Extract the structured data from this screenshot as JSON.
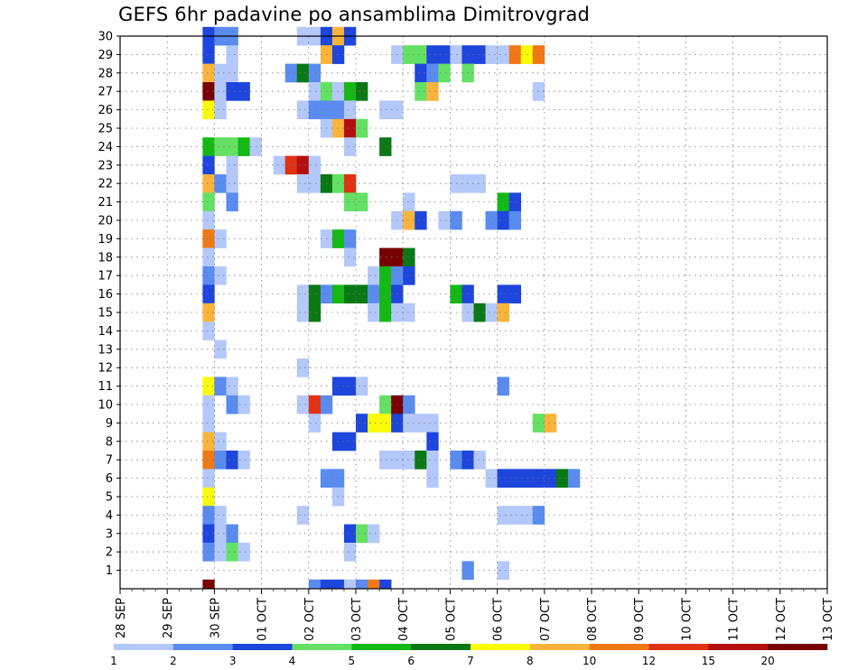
{
  "chart_data": {
    "type": "heatmap",
    "title": "GEFS 6hr padavine po ansamblima Dimitrovgrad",
    "xlabel": "",
    "ylabel": "",
    "x_tick_labels": [
      "28 SEP",
      "29 SEP",
      "30 SEP",
      "01 OCT",
      "02 OCT",
      "03 OCT",
      "04 OCT",
      "05 OCT",
      "06 OCT",
      "07 OCT",
      "08 OCT",
      "09 OCT",
      "10 OCT",
      "11 OCT",
      "12 OCT",
      "13 OCT"
    ],
    "y_tick_labels": [
      "1",
      "2",
      "3",
      "4",
      "5",
      "6",
      "7",
      "8",
      "9",
      "10",
      "11",
      "12",
      "13",
      "14",
      "15",
      "16",
      "17",
      "18",
      "19",
      "20",
      "21",
      "22",
      "23",
      "24",
      "25",
      "26",
      "27",
      "28",
      "29",
      "30"
    ],
    "x_unit": "6-hour steps from 28 SEP 00z",
    "ylim": [
      0,
      30
    ],
    "grid": true,
    "colorbar": {
      "labels": [
        "1",
        "2",
        "3",
        "4",
        "5",
        "6",
        "7",
        "8",
        "10",
        "12",
        "15",
        "20"
      ],
      "colors": [
        "#b4c8fa",
        "#5a8cf0",
        "#1e46dc",
        "#64e164",
        "#14b914",
        "#0a7814",
        "#fafa0a",
        "#fab43c",
        "#f07814",
        "#e13214",
        "#b40f0f",
        "#780000"
      ]
    },
    "cells": [
      {
        "m": 30,
        "t": [
          [
            7,
            2
          ],
          [
            8,
            1
          ],
          [
            9,
            1
          ],
          [
            15,
            0
          ],
          [
            16,
            0
          ],
          [
            17,
            2
          ],
          [
            18,
            7
          ],
          [
            19,
            2
          ]
        ]
      },
      {
        "m": 29,
        "t": [
          [
            7,
            2
          ],
          [
            9,
            0
          ],
          [
            17,
            7
          ],
          [
            18,
            2
          ],
          [
            23,
            0
          ],
          [
            24,
            3
          ],
          [
            25,
            3
          ],
          [
            26,
            2
          ],
          [
            27,
            2
          ],
          [
            28,
            0
          ],
          [
            29,
            2
          ],
          [
            30,
            2
          ],
          [
            31,
            0
          ],
          [
            32,
            0
          ],
          [
            33,
            8
          ],
          [
            34,
            6
          ],
          [
            35,
            8
          ]
        ]
      },
      {
        "m": 28,
        "t": [
          [
            7,
            7
          ],
          [
            8,
            0
          ],
          [
            9,
            0
          ],
          [
            14,
            1
          ],
          [
            15,
            5
          ],
          [
            16,
            1
          ],
          [
            25,
            2
          ],
          [
            26,
            1
          ],
          [
            27,
            3
          ],
          [
            29,
            3
          ]
        ]
      },
      {
        "m": 27,
        "t": [
          [
            7,
            11
          ],
          [
            8,
            0
          ],
          [
            9,
            2
          ],
          [
            10,
            2
          ],
          [
            16,
            0
          ],
          [
            17,
            3
          ],
          [
            18,
            0
          ],
          [
            19,
            4
          ],
          [
            20,
            5
          ],
          [
            25,
            3
          ],
          [
            26,
            7
          ],
          [
            35,
            0
          ]
        ]
      },
      {
        "m": 26,
        "t": [
          [
            7,
            6
          ],
          [
            8,
            0
          ],
          [
            15,
            0
          ],
          [
            16,
            1
          ],
          [
            17,
            1
          ],
          [
            18,
            1
          ],
          [
            19,
            0
          ],
          [
            22,
            0
          ],
          [
            23,
            0
          ]
        ]
      },
      {
        "m": 25,
        "t": [
          [
            17,
            0
          ],
          [
            18,
            7
          ],
          [
            19,
            10
          ],
          [
            20,
            3
          ]
        ]
      },
      {
        "m": 24,
        "t": [
          [
            7,
            4
          ],
          [
            8,
            3
          ],
          [
            9,
            3
          ],
          [
            10,
            4
          ],
          [
            11,
            0
          ],
          [
            19,
            0
          ],
          [
            22,
            5
          ]
        ]
      },
      {
        "m": 23,
        "t": [
          [
            7,
            2
          ],
          [
            9,
            0
          ],
          [
            13,
            0
          ],
          [
            14,
            9
          ],
          [
            15,
            10
          ],
          [
            16,
            0
          ]
        ]
      },
      {
        "m": 22,
        "t": [
          [
            7,
            7
          ],
          [
            8,
            1
          ],
          [
            9,
            0
          ],
          [
            15,
            0
          ],
          [
            16,
            0
          ],
          [
            17,
            5
          ],
          [
            18,
            3
          ],
          [
            19,
            9
          ],
          [
            28,
            0
          ],
          [
            29,
            0
          ],
          [
            30,
            0
          ]
        ]
      },
      {
        "m": 21,
        "t": [
          [
            7,
            3
          ],
          [
            9,
            1
          ],
          [
            19,
            3
          ],
          [
            20,
            3
          ],
          [
            24,
            0
          ],
          [
            32,
            4
          ],
          [
            33,
            2
          ]
        ]
      },
      {
        "m": 20,
        "t": [
          [
            7,
            0
          ],
          [
            23,
            0
          ],
          [
            24,
            7
          ],
          [
            25,
            2
          ],
          [
            27,
            0
          ],
          [
            28,
            1
          ],
          [
            31,
            1
          ],
          [
            32,
            2
          ],
          [
            33,
            1
          ]
        ]
      },
      {
        "m": 19,
        "t": [
          [
            7,
            8
          ],
          [
            8,
            0
          ],
          [
            17,
            0
          ],
          [
            18,
            4
          ],
          [
            19,
            1
          ]
        ]
      },
      {
        "m": 18,
        "t": [
          [
            7,
            0
          ],
          [
            19,
            0
          ],
          [
            22,
            11
          ],
          [
            23,
            11
          ],
          [
            24,
            5
          ]
        ]
      },
      {
        "m": 17,
        "t": [
          [
            7,
            1
          ],
          [
            8,
            0
          ],
          [
            21,
            0
          ],
          [
            22,
            4
          ],
          [
            23,
            1
          ],
          [
            24,
            2
          ]
        ]
      },
      {
        "m": 16,
        "t": [
          [
            7,
            2
          ],
          [
            15,
            0
          ],
          [
            16,
            5
          ],
          [
            17,
            1
          ],
          [
            18,
            4
          ],
          [
            19,
            5
          ],
          [
            20,
            5
          ],
          [
            21,
            1
          ],
          [
            22,
            4
          ],
          [
            23,
            2
          ],
          [
            28,
            4
          ],
          [
            29,
            2
          ],
          [
            32,
            2
          ],
          [
            33,
            2
          ]
        ]
      },
      {
        "m": 15,
        "t": [
          [
            7,
            7
          ],
          [
            15,
            0
          ],
          [
            16,
            5
          ],
          [
            21,
            0
          ],
          [
            22,
            4
          ],
          [
            23,
            0
          ],
          [
            24,
            0
          ],
          [
            29,
            0
          ],
          [
            30,
            5
          ],
          [
            31,
            0
          ],
          [
            32,
            7
          ]
        ]
      },
      {
        "m": 14,
        "t": [
          [
            7,
            0
          ]
        ]
      },
      {
        "m": 13,
        "t": [
          [
            8,
            0
          ]
        ]
      },
      {
        "m": 12,
        "t": [
          [
            15,
            0
          ]
        ]
      },
      {
        "m": 11,
        "t": [
          [
            7,
            6
          ],
          [
            8,
            1
          ],
          [
            9,
            0
          ],
          [
            18,
            2
          ],
          [
            19,
            2
          ],
          [
            20,
            0
          ],
          [
            32,
            1
          ]
        ]
      },
      {
        "m": 10,
        "t": [
          [
            7,
            0
          ],
          [
            9,
            1
          ],
          [
            10,
            0
          ],
          [
            15,
            0
          ],
          [
            16,
            9
          ],
          [
            17,
            1
          ],
          [
            22,
            3
          ],
          [
            23,
            11
          ],
          [
            24,
            1
          ]
        ]
      },
      {
        "m": 9,
        "t": [
          [
            7,
            0
          ],
          [
            16,
            0
          ],
          [
            20,
            2
          ],
          [
            21,
            6
          ],
          [
            22,
            6
          ],
          [
            23,
            2
          ],
          [
            24,
            0
          ],
          [
            25,
            0
          ],
          [
            26,
            0
          ],
          [
            35,
            3
          ],
          [
            36,
            7
          ]
        ]
      },
      {
        "m": 8,
        "t": [
          [
            7,
            7
          ],
          [
            8,
            0
          ],
          [
            18,
            2
          ],
          [
            19,
            2
          ],
          [
            26,
            2
          ]
        ]
      },
      {
        "m": 7,
        "t": [
          [
            7,
            8
          ],
          [
            8,
            1
          ],
          [
            9,
            2
          ],
          [
            10,
            0
          ],
          [
            22,
            0
          ],
          [
            23,
            0
          ],
          [
            24,
            0
          ],
          [
            25,
            5
          ],
          [
            26,
            0
          ],
          [
            28,
            1
          ],
          [
            29,
            2
          ],
          [
            30,
            0
          ]
        ]
      },
      {
        "m": 6,
        "t": [
          [
            7,
            0
          ],
          [
            17,
            1
          ],
          [
            18,
            1
          ],
          [
            26,
            0
          ],
          [
            31,
            0
          ],
          [
            32,
            2
          ],
          [
            33,
            2
          ],
          [
            34,
            2
          ],
          [
            35,
            2
          ],
          [
            36,
            2
          ],
          [
            37,
            5
          ],
          [
            38,
            1
          ]
        ]
      },
      {
        "m": 5,
        "t": [
          [
            7,
            6
          ],
          [
            18,
            0
          ]
        ]
      },
      {
        "m": 4,
        "t": [
          [
            7,
            1
          ],
          [
            8,
            0
          ],
          [
            15,
            0
          ],
          [
            32,
            0
          ],
          [
            33,
            0
          ],
          [
            34,
            0
          ],
          [
            35,
            1
          ]
        ]
      },
      {
        "m": 3,
        "t": [
          [
            7,
            2
          ],
          [
            8,
            0
          ],
          [
            9,
            1
          ],
          [
            19,
            2
          ],
          [
            20,
            3
          ],
          [
            21,
            0
          ]
        ]
      },
      {
        "m": 2,
        "t": [
          [
            7,
            1
          ],
          [
            8,
            0
          ],
          [
            9,
            3
          ],
          [
            10,
            0
          ],
          [
            19,
            0
          ]
        ]
      },
      {
        "m": 1,
        "t": [
          [
            29,
            1
          ],
          [
            32,
            0
          ]
        ]
      }
    ],
    "row_zero": {
      "m": 0,
      "t": [
        [
          7,
          11
        ],
        [
          16,
          1
        ],
        [
          17,
          2
        ],
        [
          18,
          2
        ],
        [
          19,
          0
        ],
        [
          20,
          1
        ],
        [
          21,
          8
        ],
        [
          22,
          2
        ]
      ]
    }
  }
}
